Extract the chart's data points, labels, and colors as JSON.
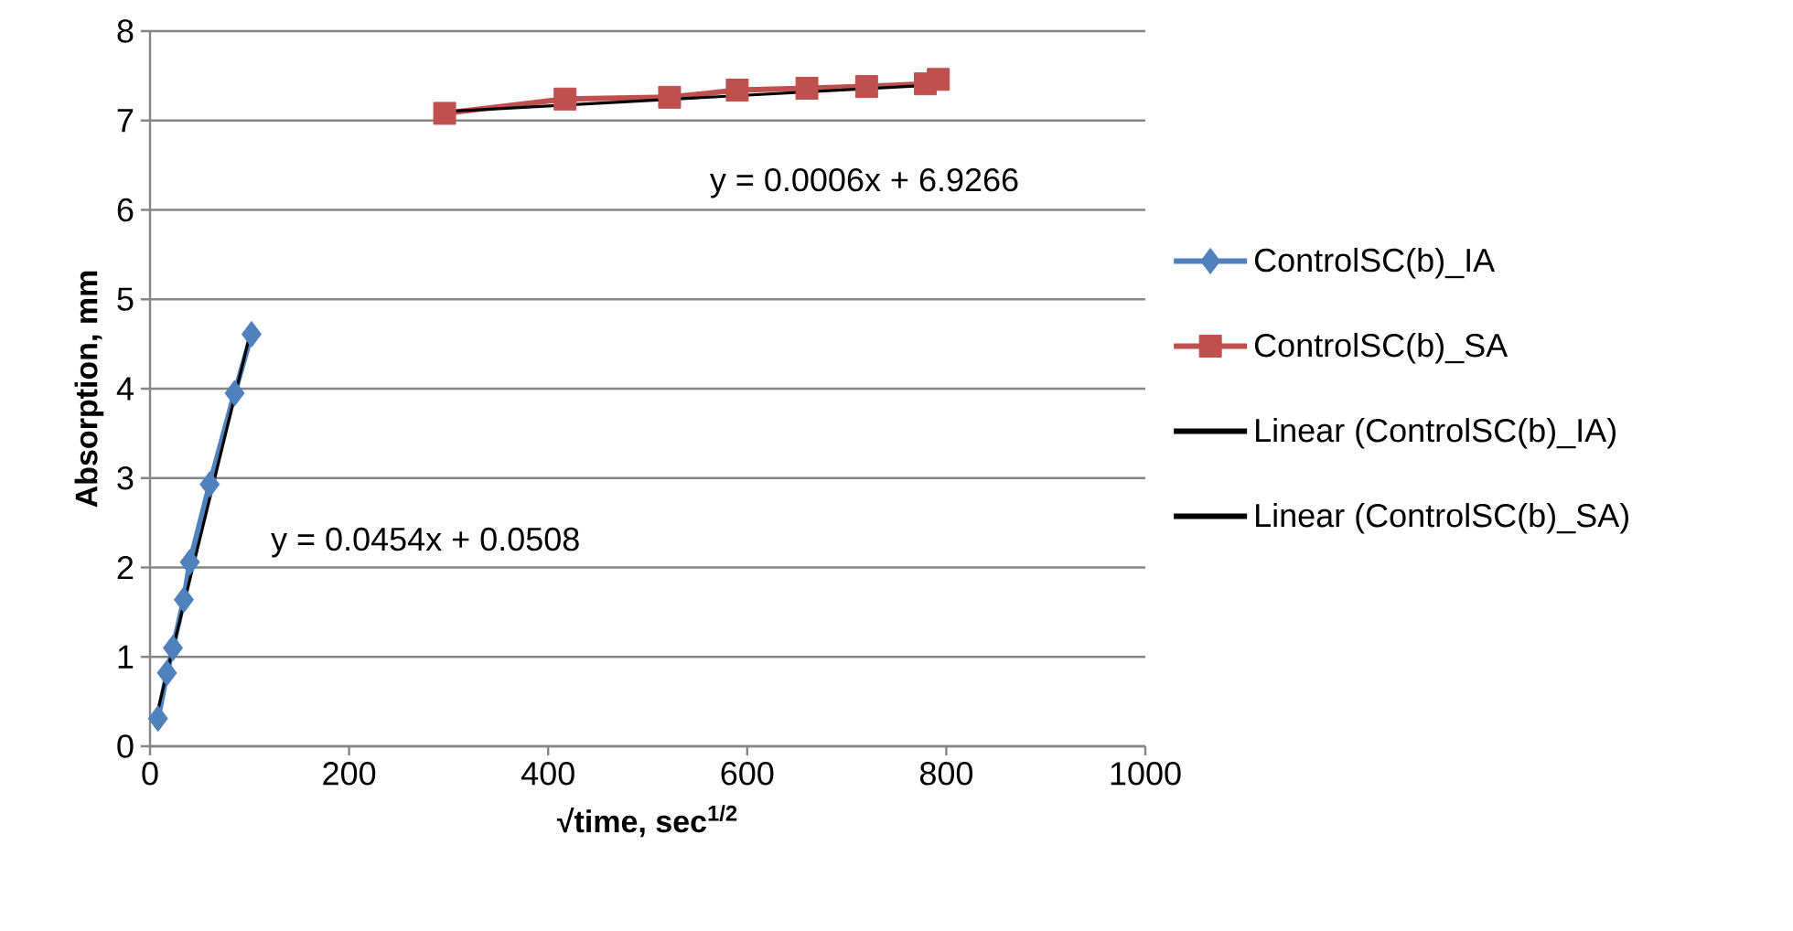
{
  "chart_data": {
    "type": "line",
    "xlabel": "√time, sec$^{1/2}$",
    "ylabel": "Absorption, mm",
    "xlim": [
      0,
      1000
    ],
    "xticks": [
      0,
      200,
      400,
      600,
      800,
      1000
    ],
    "ylim": [
      0,
      8
    ],
    "yticks": [
      0,
      1,
      2,
      3,
      4,
      5,
      6,
      7,
      8
    ],
    "grid": "y",
    "legend": "right",
    "line_style": "solid",
    "series": [
      {
        "name": "ControlSC(b)_IA",
        "marker": "diamond",
        "color": "#4f81bd",
        "x": [
          8,
          17,
          23,
          34,
          40,
          60,
          85,
          102
        ],
        "values": [
          0.31,
          0.82,
          1.1,
          1.64,
          2.06,
          2.93,
          3.95,
          4.61
        ]
      },
      {
        "name": "ControlSC(b)_SA",
        "marker": "square",
        "color": "#c0504d",
        "x": [
          296,
          417,
          522,
          590,
          660,
          720,
          779,
          792
        ],
        "values": [
          7.08,
          7.24,
          7.26,
          7.34,
          7.36,
          7.38,
          7.41,
          7.46
        ]
      },
      {
        "name": "Linear (ControlSC(b)_IA)",
        "marker": "none",
        "color": "#000000",
        "x": [
          8,
          102
        ],
        "values": [
          0.41,
          4.68
        ]
      },
      {
        "name": "Linear (ControlSC(b)_SA)",
        "marker": "none",
        "color": "#000000",
        "x": [
          296,
          792
        ],
        "values": [
          7.1,
          7.4
        ]
      }
    ],
    "annotations": [
      "y = 0.0454x + 0.0508",
      "y = 0.0006x + 6.9266"
    ]
  }
}
